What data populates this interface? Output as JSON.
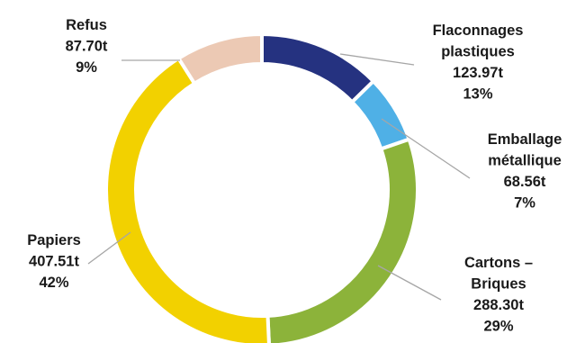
{
  "chart_data": {
    "type": "pie",
    "variant": "donut",
    "title": "",
    "unit": "t",
    "slices": [
      {
        "lines": [
          "Flaconnages",
          "plastiques"
        ],
        "value_label": "123.97t",
        "percent_label": "13%",
        "value": 123.97,
        "color": "#253280"
      },
      {
        "lines": [
          "Emballage",
          "métallique"
        ],
        "value_label": "68.56t",
        "percent_label": "7%",
        "value": 68.56,
        "color": "#4fb0e6"
      },
      {
        "lines": [
          "Cartons –",
          "Briques"
        ],
        "value_label": "288.30t",
        "percent_label": "29%",
        "value": 288.3,
        "color": "#8cb33a"
      },
      {
        "lines": [
          "Papiers"
        ],
        "value_label": "407.51t",
        "percent_label": "42%",
        "value": 407.51,
        "color": "#f2d100"
      },
      {
        "lines": [
          "Refus"
        ],
        "value_label": "87.70t",
        "percent_label": "9%",
        "value": 87.7,
        "color": "#ecc9b4"
      }
    ]
  }
}
